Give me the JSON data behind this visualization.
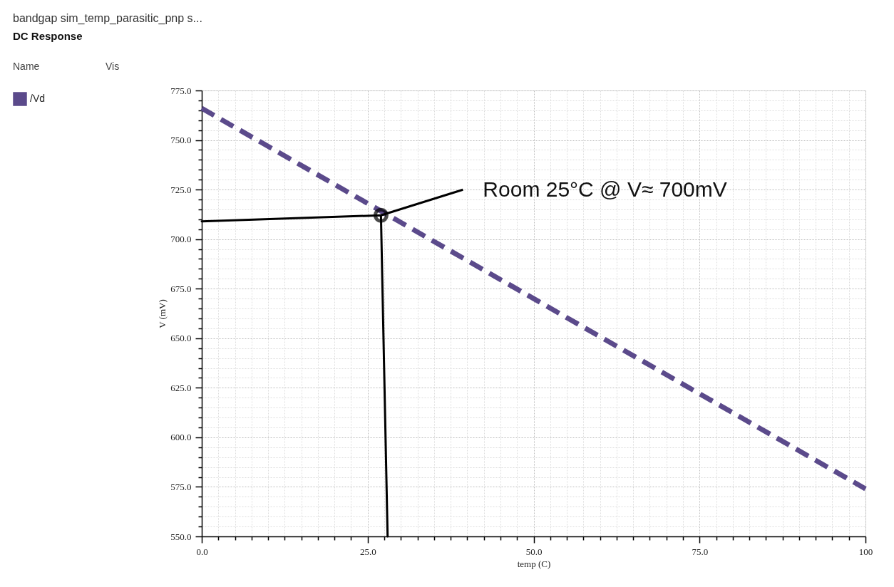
{
  "chart_data": {
    "type": "line",
    "title": "bandgap sim_temp_parasitic_pnp s...",
    "subtitle": "DC Response",
    "xlabel": "temp (C)",
    "ylabel": "V (mV)",
    "legend_title": "Name",
    "x": [
      0,
      25,
      50,
      75,
      100
    ],
    "series": [
      {
        "name": "/Vd",
        "color": "#5b4a8b",
        "values": [
          766,
          718,
          670,
          622,
          574
        ],
        "line_style": "dashed"
      },
      {
        "color": "#000000",
        "x": [
          0,
          27,
          28
        ],
        "values": [
          709,
          712,
          550
        ],
        "line_style": "solid"
      }
    ],
    "xlim": [
      0,
      100
    ],
    "ylim": [
      550,
      775
    ],
    "xticks": [
      {
        "value": 0,
        "label": "0.0"
      },
      {
        "value": 2.5,
        "label": null
      },
      {
        "value": 5,
        "label": null
      },
      {
        "value": 7.5,
        "label": null
      },
      {
        "value": 10,
        "label": null
      },
      {
        "value": 12.5,
        "label": null
      },
      {
        "value": 15,
        "label": null
      },
      {
        "value": 17.5,
        "label": null
      },
      {
        "value": 20,
        "label": null
      },
      {
        "value": 22.5,
        "label": null
      },
      {
        "value": 25,
        "label": "25.0"
      },
      {
        "value": 27.5,
        "label": null
      },
      {
        "value": 30,
        "label": null
      },
      {
        "value": 32.5,
        "label": null
      },
      {
        "value": 35,
        "label": null
      },
      {
        "value": 37.5,
        "label": null
      },
      {
        "value": 40,
        "label": null
      },
      {
        "value": 42.5,
        "label": null
      },
      {
        "value": 45,
        "label": null
      },
      {
        "value": 47.5,
        "label": null
      },
      {
        "value": 50,
        "label": "50.0"
      },
      {
        "value": 52.5,
        "label": null
      },
      {
        "value": 55,
        "label": null
      },
      {
        "value": 57.5,
        "label": null
      },
      {
        "value": 60,
        "label": null
      },
      {
        "value": 62.5,
        "label": null
      },
      {
        "value": 65,
        "label": null
      },
      {
        "value": 67.5,
        "label": null
      },
      {
        "value": 70,
        "label": null
      },
      {
        "value": 72.5,
        "label": null
      },
      {
        "value": 75,
        "label": "75.0"
      },
      {
        "value": 77.5,
        "label": null
      },
      {
        "value": 80,
        "label": null
      },
      {
        "value": 82.5,
        "label": null
      },
      {
        "value": 85,
        "label": null
      },
      {
        "value": 87.5,
        "label": null
      },
      {
        "value": 90,
        "label": null
      },
      {
        "value": 92.5,
        "label": null
      },
      {
        "value": 95,
        "label": null
      },
      {
        "value": 97.5,
        "label": null
      },
      100
    ],
    "yticks": [
      {
        "value": 550,
        "label": "550.0"
      },
      {
        "value": 555,
        "label": null
      },
      {
        "value": 560,
        "label": null
      },
      {
        "value": 565,
        "label": null
      },
      {
        "value": 570,
        "label": null
      },
      {
        "value": 575,
        "label": "575.0"
      },
      {
        "value": 580,
        "label": null
      },
      {
        "value": 585,
        "label": null
      },
      {
        "value": 590,
        "label": null
      },
      {
        "value": 595,
        "label": null
      },
      {
        "value": 600,
        "label": "600.0"
      },
      {
        "value": 605,
        "label": null
      },
      {
        "value": 610,
        "label": null
      },
      {
        "value": 615,
        "label": null
      },
      {
        "value": 620,
        "label": null
      },
      {
        "value": 625,
        "label": "625.0"
      },
      {
        "value": 630,
        "label": null
      },
      {
        "value": 635,
        "label": null
      },
      {
        "value": 640,
        "label": null
      },
      {
        "value": 645,
        "label": null
      },
      {
        "value": 650,
        "label": "650.0"
      },
      {
        "value": 655,
        "label": null
      },
      {
        "value": 660,
        "label": null
      },
      {
        "value": 665,
        "label": null
      },
      {
        "value": 670,
        "label": null
      },
      {
        "value": 675,
        "label": "675.0"
      },
      {
        "value": 680,
        "label": null
      },
      {
        "value": 685,
        "label": null
      },
      {
        "value": 690,
        "label": null
      },
      {
        "value": 695,
        "label": null
      },
      {
        "value": 700,
        "label": "700.0"
      },
      {
        "value": 705,
        "label": null
      },
      {
        "value": 710,
        "label": null
      },
      {
        "value": 715,
        "label": null
      },
      {
        "value": 720,
        "label": null
      },
      {
        "value": 725,
        "label": "725.0"
      },
      {
        "value": 730,
        "label": null
      },
      {
        "value": 735,
        "label": null
      },
      {
        "value": 740,
        "label": null
      },
      {
        "value": 745,
        "label": null
      },
      {
        "value": 750,
        "label": "750.0"
      },
      {
        "value": 755,
        "label": null
      },
      {
        "value": 760,
        "label": null
      },
      {
        "value": 765,
        "label": null
      },
      {
        "value": 770,
        "label": null
      },
      {
        "value": 775,
        "label": "775.0"
      }
    ],
    "grid": true,
    "legend": "left",
    "annotations": [
      "Vis",
      {
        "text": "Room 25°C @ V≈ 700mV",
        "x": 27,
        "y": 712
      }
    ]
  }
}
